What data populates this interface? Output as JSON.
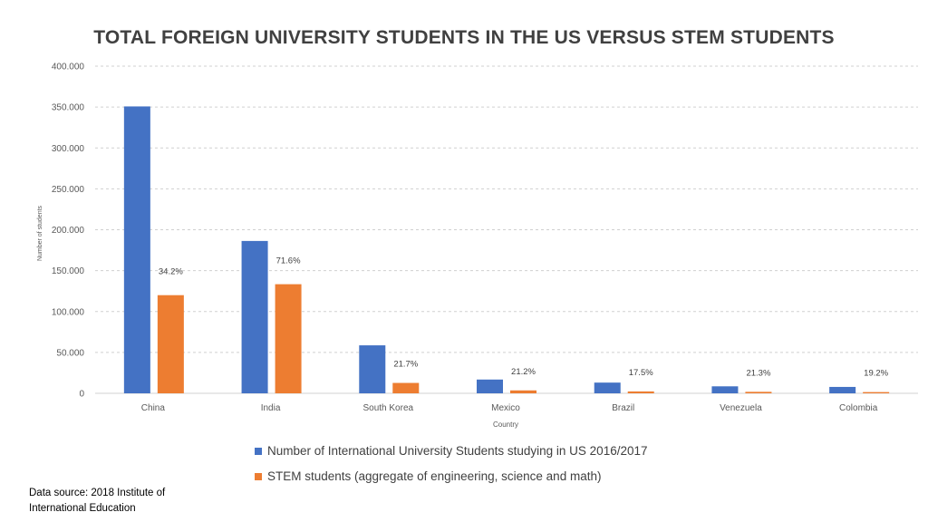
{
  "chart_data": {
    "type": "bar",
    "title": "TOTAL FOREIGN UNIVERSITY STUDENTS IN THE US VERSUS STEM STUDENTS",
    "xlabel": "Country",
    "ylabel": "Number of students",
    "ylim": [
      0,
      400000
    ],
    "yticks": [
      0,
      50000,
      100000,
      150000,
      200000,
      250000,
      300000,
      350000,
      400000
    ],
    "ytick_labels": [
      "0",
      "50.000",
      "100.000",
      "150.000",
      "200.000",
      "250.000",
      "300.000",
      "350.000",
      "400.000"
    ],
    "grid": true,
    "legend_position": "bottom",
    "categories": [
      "China",
      "India",
      "South Korea",
      "Mexico",
      "Brazil",
      "Venezuela",
      "Colombia"
    ],
    "series": [
      {
        "name": "Number of International University Students studying in US 2016/2017",
        "color": "#4472C4",
        "values": [
          350755,
          186267,
          58663,
          16835,
          13089,
          8540,
          7815
        ]
      },
      {
        "name": "STEM students (aggregate of engineering, science and math)",
        "color": "#ED7D31",
        "values": [
          120000,
          133400,
          12700,
          3570,
          2290,
          1820,
          1500
        ],
        "data_labels": [
          "34.2%",
          "71.6%",
          "21.7%",
          "21.2%",
          "17.5%",
          "21.3%",
          "19.2%"
        ]
      }
    ]
  },
  "source_note": "Data source: 2018 Institute of International Education"
}
